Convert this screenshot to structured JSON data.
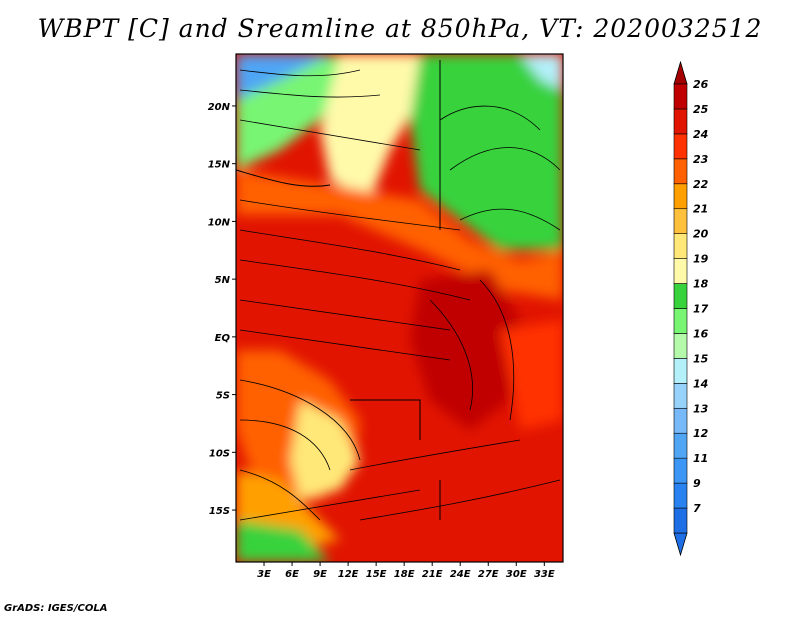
{
  "title": "WBPT [C] and Sreamline at 850hPa, VT: 2020032512",
  "footer": "GrADS: IGES/COLA",
  "map": {
    "lat_range": [
      -19.5,
      24.5
    ],
    "lon_range": [
      0,
      35
    ],
    "lat_ticks": [
      {
        "value": 20,
        "label": "20N"
      },
      {
        "value": 15,
        "label": "15N"
      },
      {
        "value": 10,
        "label": "10N"
      },
      {
        "value": 5,
        "label": "5N"
      },
      {
        "value": 0,
        "label": "EQ"
      },
      {
        "value": -5,
        "label": "5S"
      },
      {
        "value": -10,
        "label": "10S"
      },
      {
        "value": -15,
        "label": "15S"
      }
    ],
    "lon_ticks": [
      {
        "value": 3,
        "label": "3E"
      },
      {
        "value": 6,
        "label": "6E"
      },
      {
        "value": 9,
        "label": "9E"
      },
      {
        "value": 12,
        "label": "12E"
      },
      {
        "value": 15,
        "label": "15E"
      },
      {
        "value": 18,
        "label": "18E"
      },
      {
        "value": 21,
        "label": "21E"
      },
      {
        "value": 24,
        "label": "24E"
      },
      {
        "value": 27,
        "label": "27E"
      },
      {
        "value": 30,
        "label": "30E"
      },
      {
        "value": 33,
        "label": "33E"
      }
    ]
  },
  "colorbar": {
    "levels": [
      {
        "label": "7",
        "color": "#1e6ee6"
      },
      {
        "label": "9",
        "color": "#2882f0"
      },
      {
        "label": "11",
        "color": "#3c96f5"
      },
      {
        "label": "12",
        "color": "#50a5f5"
      },
      {
        "label": "13",
        "color": "#78b9fa"
      },
      {
        "label": "14",
        "color": "#96d2fa"
      },
      {
        "label": "15",
        "color": "#b4f0fa"
      },
      {
        "label": "16",
        "color": "#b4faaa"
      },
      {
        "label": "17",
        "color": "#78f573"
      },
      {
        "label": "18",
        "color": "#37d23c"
      },
      {
        "label": "19",
        "color": "#fffaaa"
      },
      {
        "label": "20",
        "color": "#ffe878"
      },
      {
        "label": "21",
        "color": "#ffc03c"
      },
      {
        "label": "22",
        "color": "#ffa000"
      },
      {
        "label": "23",
        "color": "#ff6000"
      },
      {
        "label": "24",
        "color": "#ff3200"
      },
      {
        "label": "25",
        "color": "#e11400"
      },
      {
        "label": "26",
        "color": "#c00000"
      }
    ],
    "bottom_triangle_color": "#1e6ee6",
    "top_triangle_color": "#a50000"
  }
}
